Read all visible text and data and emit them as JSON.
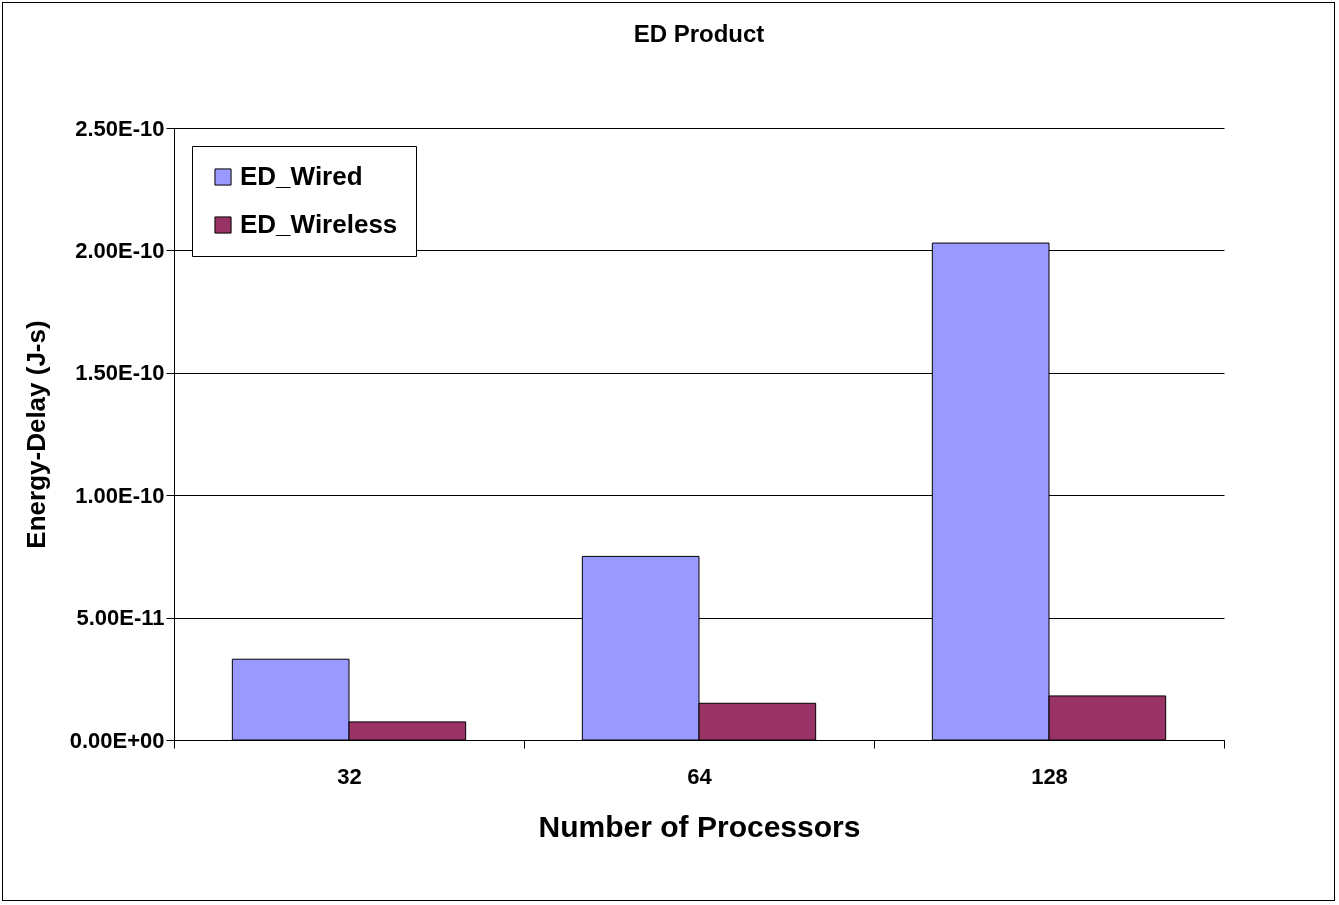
{
  "chart_data": {
    "type": "bar",
    "title": "ED Product",
    "xlabel": "Number of Processors",
    "ylabel": "Energy-Delay (J-s)",
    "categories": [
      "32",
      "64",
      "128"
    ],
    "series": [
      {
        "name": "ED_Wired",
        "color": "#9999ff",
        "values": [
          3.3e-11,
          7.5e-11,
          2.03e-10
        ]
      },
      {
        "name": "ED_Wireless",
        "color": "#993366",
        "values": [
          7.4e-12,
          1.5e-11,
          1.8e-11
        ]
      }
    ],
    "ylim": [
      0,
      2.5e-10
    ],
    "yticks": [
      {
        "value": 0,
        "label": "0.00E+00"
      },
      {
        "value": 5e-11,
        "label": "5.00E-11"
      },
      {
        "value": 1e-10,
        "label": "1.00E-10"
      },
      {
        "value": 1.5e-10,
        "label": "1.50E-10"
      },
      {
        "value": 2e-10,
        "label": "2.00E-10"
      },
      {
        "value": 2.5e-10,
        "label": "2.50E-10"
      }
    ],
    "grid": "y",
    "legend": "top left"
  }
}
